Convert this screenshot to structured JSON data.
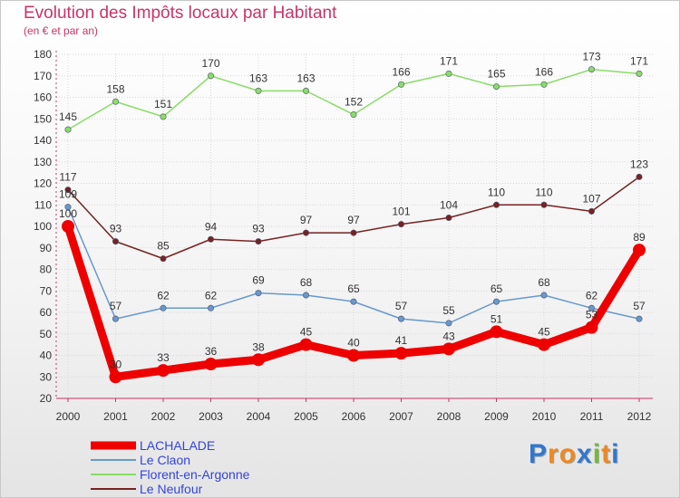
{
  "chart_data": {
    "type": "line",
    "title": "Evolution des Impôts locaux par Habitant",
    "subtitle": "(en € et par an)",
    "categories": [
      "2000",
      "2001",
      "2002",
      "2003",
      "2004",
      "2005",
      "2006",
      "2007",
      "2008",
      "2009",
      "2010",
      "2011",
      "2012"
    ],
    "ylim": [
      20,
      180
    ],
    "yticks": [
      20,
      30,
      40,
      50,
      60,
      70,
      80,
      90,
      100,
      110,
      120,
      130,
      140,
      150,
      160,
      170,
      180
    ],
    "series": [
      {
        "name": "LACHALADE",
        "color": "#ee0000",
        "values": [
          100,
          30,
          33,
          36,
          38,
          45,
          40,
          41,
          43,
          51,
          45,
          53,
          89
        ]
      },
      {
        "name": "Le Claon",
        "color": "#6699cc",
        "values": [
          109,
          57,
          62,
          62,
          69,
          68,
          65,
          57,
          55,
          65,
          68,
          62,
          57
        ]
      },
      {
        "name": "Florent-en-Argonne",
        "color": "#88dd66",
        "values": [
          145,
          158,
          151,
          170,
          163,
          163,
          152,
          166,
          171,
          165,
          166,
          173,
          171
        ]
      },
      {
        "name": "Le Neufour",
        "color": "#772222",
        "values": [
          117,
          93,
          85,
          94,
          93,
          97,
          97,
          101,
          104,
          110,
          110,
          107,
          123
        ]
      }
    ]
  },
  "brand": {
    "letters": [
      "P",
      "r",
      "o",
      "x",
      "i",
      "t",
      "i"
    ],
    "colors": [
      "#3377cc",
      "#ee8822",
      "#ee8822",
      "#3377cc",
      "#77bb33",
      "#ee8822",
      "#3377cc"
    ]
  }
}
